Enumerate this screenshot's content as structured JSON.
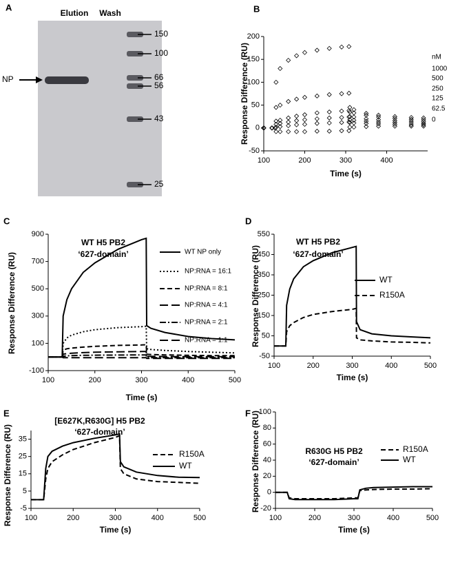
{
  "gel": {
    "panel": "A",
    "lanes": [
      "Elution",
      "Wash"
    ],
    "band_label": "NP",
    "markers": [
      150,
      100,
      66,
      56,
      43,
      25
    ]
  },
  "chart_data": [
    {
      "type": "scatter",
      "panel": "B",
      "xlabel": "Time (s)",
      "ylabel": "Response Difference (RU)",
      "xlim": [
        100,
        500
      ],
      "xticks": [
        100,
        200,
        300,
        400
      ],
      "ylim": [
        -50,
        200
      ],
      "yticks": [
        -50,
        0,
        50,
        100,
        150,
        200
      ],
      "marker": "diamond",
      "legend_title": "nM",
      "x": [
        100,
        120,
        128,
        130,
        140,
        160,
        180,
        200,
        230,
        260,
        290,
        308,
        310,
        320,
        350,
        380,
        420,
        460,
        490
      ],
      "series": [
        {
          "name": "1000",
          "color": "#000000",
          "values": [
            0,
            0,
            0,
            100,
            130,
            148,
            158,
            165,
            170,
            174,
            177,
            178,
            45,
            40,
            32,
            28,
            25,
            23,
            22
          ]
        },
        {
          "name": "500",
          "color": "#000000",
          "values": [
            0,
            0,
            0,
            45,
            50,
            58,
            63,
            67,
            70,
            73,
            75,
            76,
            35,
            33,
            28,
            24,
            21,
            19,
            18
          ]
        },
        {
          "name": "250",
          "color": "#000000",
          "values": [
            0,
            0,
            0,
            15,
            17,
            22,
            26,
            29,
            33,
            35,
            37,
            38,
            25,
            24,
            20,
            18,
            16,
            15,
            14
          ]
        },
        {
          "name": "125",
          "color": "#000000",
          "values": [
            0,
            0,
            0,
            8,
            10,
            13,
            16,
            18,
            20,
            22,
            23,
            24,
            18,
            17,
            15,
            13,
            12,
            11,
            10
          ]
        },
        {
          "name": "62.5",
          "color": "#000000",
          "values": [
            0,
            0,
            0,
            2,
            3,
            5,
            7,
            8,
            10,
            11,
            12,
            13,
            12,
            11,
            10,
            9,
            8,
            7,
            7
          ]
        },
        {
          "name": "0",
          "color": "#000000",
          "values": [
            0,
            0,
            0,
            -8,
            -8,
            -8,
            -8,
            -8,
            -7,
            -7,
            -6,
            -6,
            2,
            2,
            3,
            4,
            4,
            4,
            4
          ]
        }
      ]
    },
    {
      "type": "line",
      "panel": "C",
      "xlabel": "Time (s)",
      "ylabel": "Response Difference (RU)",
      "annotations": [
        "WT H5 PB2",
        "‘627-domain’"
      ],
      "xlim": [
        100,
        500
      ],
      "xticks": [
        100,
        200,
        300,
        400,
        500
      ],
      "ylim": [
        -100,
        900
      ],
      "yticks": [
        -100,
        100,
        300,
        500,
        700,
        900
      ],
      "x": [
        100,
        130,
        132,
        140,
        150,
        175,
        200,
        250,
        300,
        310,
        311,
        320,
        350,
        400,
        450,
        500
      ],
      "series": [
        {
          "name": "WT NP only",
          "color": "#000000",
          "dash": "solid",
          "values": [
            0,
            0,
            300,
            420,
            500,
            620,
            690,
            790,
            860,
            870,
            230,
            210,
            180,
            150,
            135,
            125
          ]
        },
        {
          "name": "NP:RNA = 16:1",
          "color": "#000000",
          "dash": "dot",
          "values": [
            0,
            0,
            100,
            140,
            160,
            185,
            200,
            215,
            222,
            225,
            60,
            55,
            48,
            40,
            35,
            30
          ]
        },
        {
          "name": "NP:RNA = 8:1",
          "color": "#000000",
          "dash": "dash",
          "values": [
            0,
            0,
            50,
            60,
            65,
            72,
            78,
            85,
            88,
            90,
            20,
            18,
            15,
            12,
            10,
            10
          ]
        },
        {
          "name": "NP:RNA = 4:1",
          "color": "#000000",
          "dash": "longdash",
          "values": [
            0,
            0,
            20,
            25,
            28,
            32,
            35,
            38,
            40,
            40,
            5,
            5,
            3,
            2,
            2,
            2
          ]
        },
        {
          "name": "NP:RNA = 2:1",
          "color": "#000000",
          "dash": "dashdot",
          "values": [
            0,
            0,
            5,
            8,
            10,
            12,
            13,
            14,
            15,
            15,
            -5,
            -5,
            -5,
            -5,
            -5,
            -5
          ]
        },
        {
          "name": "NP:RNA = 1:1",
          "color": "#000000",
          "dash": "longdash",
          "values": [
            0,
            0,
            -5,
            -5,
            -5,
            -5,
            -5,
            -5,
            -5,
            -5,
            -10,
            -10,
            -10,
            -10,
            -10,
            -10
          ]
        }
      ]
    },
    {
      "type": "line",
      "panel": "D",
      "xlabel": "Time (s)",
      "ylabel": "Response Difference (RU)",
      "annotations": [
        "WT H5 PB2",
        "‘627-domain’"
      ],
      "xlim": [
        100,
        500
      ],
      "xticks": [
        100,
        200,
        300,
        400,
        500
      ],
      "ylim": [
        -50,
        550
      ],
      "yticks": [
        -50,
        50,
        150,
        250,
        350,
        450,
        550
      ],
      "x": [
        100,
        130,
        132,
        140,
        150,
        175,
        200,
        250,
        300,
        310,
        311,
        320,
        350,
        400,
        450,
        500
      ],
      "series": [
        {
          "name": "WT",
          "color": "#000000",
          "dash": "solid",
          "values": [
            0,
            0,
            200,
            280,
            330,
            390,
            420,
            460,
            485,
            490,
            120,
            80,
            60,
            50,
            45,
            40
          ]
        },
        {
          "name": "R150A",
          "color": "#000000",
          "dash": "dash",
          "values": [
            0,
            0,
            70,
            100,
            115,
            140,
            155,
            170,
            180,
            185,
            40,
            30,
            25,
            20,
            18,
            15
          ]
        }
      ]
    },
    {
      "type": "line",
      "panel": "E",
      "xlabel": "Time (s)",
      "ylabel": "Response Difference (RU)",
      "annotations": [
        "[E627K,R630G] H5 PB2",
        "‘627-domain’"
      ],
      "xlim": [
        100,
        500
      ],
      "xticks": [
        100,
        200,
        300,
        400,
        500
      ],
      "ylim": [
        -5,
        40
      ],
      "yticks": [
        -5,
        5,
        15,
        25,
        35
      ],
      "x": [
        100,
        130,
        135,
        140,
        150,
        175,
        200,
        250,
        300,
        310,
        312,
        320,
        350,
        400,
        450,
        500
      ],
      "series": [
        {
          "name": "R150A",
          "color": "#000000",
          "dash": "dash",
          "values": [
            0,
            0,
            12,
            18,
            22,
            26,
            29,
            33,
            36,
            37,
            18,
            15,
            12,
            10.5,
            10,
            9.5
          ]
        },
        {
          "name": "WT",
          "color": "#000000",
          "dash": "solid",
          "values": [
            0,
            0,
            18,
            25,
            28,
            31,
            33,
            35.5,
            37.5,
            38,
            22,
            19,
            16,
            14,
            13,
            12.8
          ]
        }
      ]
    },
    {
      "type": "line",
      "panel": "F",
      "xlabel": "Time (s)",
      "ylabel": "Response Difference (RU)",
      "annotations": [
        "R630G H5 PB2",
        "‘627-domain’"
      ],
      "xlim": [
        100,
        500
      ],
      "xticks": [
        100,
        200,
        300,
        400,
        500
      ],
      "ylim": [
        -20,
        100
      ],
      "yticks": [
        -20,
        0,
        20,
        40,
        60,
        80,
        100
      ],
      "x": [
        100,
        130,
        135,
        150,
        200,
        250,
        300,
        310,
        315,
        330,
        350,
        400,
        450,
        500
      ],
      "series": [
        {
          "name": "R150A",
          "color": "#000000",
          "dash": "dash",
          "values": [
            0,
            0,
            -7,
            -8,
            -8,
            -8,
            -7,
            -7,
            2,
            3,
            3.5,
            4,
            4,
            4.5
          ]
        },
        {
          "name": "WT",
          "color": "#000000",
          "dash": "solid",
          "values": [
            0,
            0,
            -8,
            -9,
            -9,
            -9,
            -8,
            -8,
            3,
            5,
            6,
            6.5,
            7,
            7
          ]
        }
      ]
    }
  ]
}
